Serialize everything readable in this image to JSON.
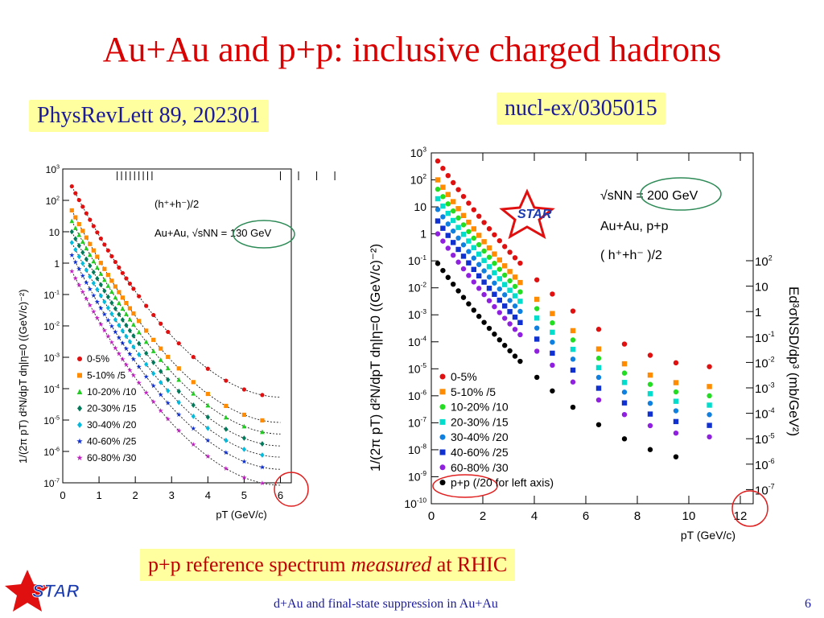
{
  "title": "Au+Au and p+p: inclusive charged hadrons",
  "ref_left": "PhysRevLett 89, 202301",
  "ref_right": "nucl-ex/0305015",
  "bottom_box": {
    "prefix": "p+p reference spectrum ",
    "emph": "measured",
    "suffix": " at RHIC"
  },
  "footer": "d+Au and final-state suppression in Au+Au",
  "page_number": "6",
  "logo_text": "STAR",
  "colors": {
    "title": "#d80000",
    "ref_text": "#1a1a9a",
    "box_bg": "#ffffa0",
    "circle_green": "#2e8b57",
    "circle_red": "#e02020"
  },
  "chart_data": [
    {
      "type": "scatter",
      "log_y": true,
      "xlim": [
        0,
        6.3
      ],
      "ylim_exp": [
        -7,
        3
      ],
      "xticks": [
        "0",
        "1",
        "2",
        "3",
        "4",
        "5",
        "6"
      ],
      "yticks": [
        "10^3",
        "10^2",
        "10",
        "1",
        "10^-1",
        "10^-2",
        "10^-3",
        "10^-4",
        "10^-5",
        "10^-6",
        "10^-7"
      ],
      "xlabel": "pT (GeV/c)",
      "ylabel": "1/(2π pT) d²N/dpT dη|η=0 ((GeV/c)⁻²)",
      "annotation_1": "(h⁺+h⁻)/2",
      "annotation_2": "Au+Au, √sNN = 130 GeV",
      "legend_position": "bottom-left",
      "series": [
        {
          "name": "0-5%",
          "color": "#e01010",
          "marker": "circle",
          "y0": 280,
          "yend": 9e-05
        },
        {
          "name": "5-10% /5",
          "color": "#ff8c00",
          "marker": "square",
          "y0": 48,
          "yend": 1.4e-05
        },
        {
          "name": "10-20% /10",
          "color": "#22cc22",
          "marker": "triangle",
          "y0": 22,
          "yend": 6e-06
        },
        {
          "name": "20-30% /15",
          "color": "#007a5a",
          "marker": "diamond",
          "y0": 10,
          "yend": 2.5e-06
        },
        {
          "name": "30-40% /20",
          "color": "#00bbdd",
          "marker": "diamond",
          "y0": 4.5,
          "yend": 1.1e-06
        },
        {
          "name": "40-60% /25",
          "color": "#1030d0",
          "marker": "star",
          "y0": 1.8,
          "yend": 4.5e-07
        },
        {
          "name": "60-80% /30",
          "color": "#c020c0",
          "marker": "star",
          "y0": 0.55,
          "yend": 1.4e-07
        }
      ]
    },
    {
      "type": "scatter",
      "log_y": true,
      "xlim": [
        0,
        12.5
      ],
      "ylim_exp": [
        -10,
        3
      ],
      "xticks": [
        "0",
        "2",
        "4",
        "6",
        "8",
        "10",
        "12"
      ],
      "yticks": [
        "10^3",
        "10^2",
        "10",
        "1",
        "10^-1",
        "10^-2",
        "10^-3",
        "10^-4",
        "10^-5",
        "10^-6",
        "10^-7",
        "10^-8",
        "10^-9",
        "10^-10"
      ],
      "right_yticks": [
        "10^2",
        "10",
        "1",
        "10^-1",
        "10^-2",
        "10^-3",
        "10^-4",
        "10^-5",
        "10^-6",
        "10^-7"
      ],
      "xlabel": "pT (GeV/c)",
      "ylabel": "1/(2π pT) d²N/dpT dη|η=0 ((GeV/c)⁻²)",
      "right_ylabel": "Ed³σNSD/dp³ (mb/GeV²)",
      "annotation_1": "√sNN = 200 GeV",
      "annotation_2": "Au+Au, p+p",
      "annotation_3": "( h⁺+h⁻ )/2",
      "legend_position": "bottom-left",
      "series": [
        {
          "name": "0-5%",
          "color": "#e01010",
          "marker": "circle",
          "y0": 500,
          "yend": 1.2e-05
        },
        {
          "name": "5-10% /5",
          "color": "#ff8c00",
          "marker": "square",
          "y0": 100,
          "yend": 2.2e-06
        },
        {
          "name": "10-20% /10",
          "color": "#22dd22",
          "marker": "circle",
          "y0": 45,
          "yend": 1e-06
        },
        {
          "name": "20-30% /15",
          "color": "#00ddcc",
          "marker": "square",
          "y0": 20,
          "yend": 4.5e-07
        },
        {
          "name": "30-40% /20",
          "color": "#1080e0",
          "marker": "circle",
          "y0": 8,
          "yend": 2e-07
        },
        {
          "name": "40-60% /25",
          "color": "#1030d0",
          "marker": "square",
          "y0": 3,
          "yend": 8e-08
        },
        {
          "name": "60-80% /30",
          "color": "#9020e0",
          "marker": "circle",
          "y0": 1,
          "yend": 3e-08
        },
        {
          "name": "p+p (/20 for left axis)",
          "color": "#000000",
          "marker": "circle",
          "y0": 0.08,
          "yend": 4e-09
        }
      ]
    }
  ]
}
